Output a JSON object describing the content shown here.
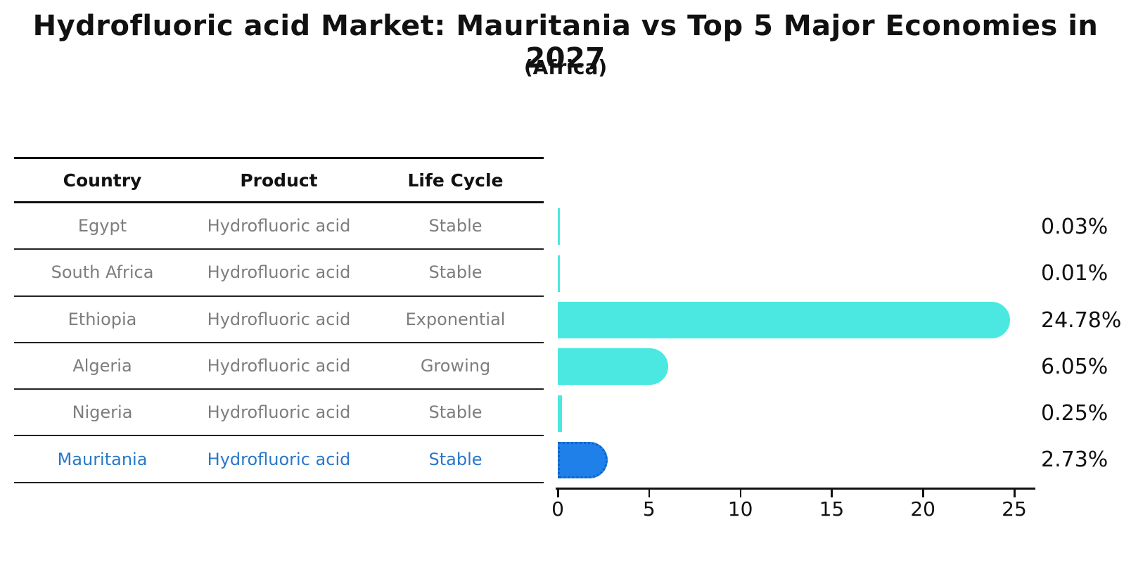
{
  "title": "Hydrofluoric acid Market: Mauritania vs Top 5 Major Economies in 2027",
  "subtitle": "(Africa)",
  "table": {
    "columns": {
      "country": "Country",
      "product": "Product",
      "life_cycle": "Life Cycle"
    },
    "rows": [
      {
        "country": "Egypt",
        "product": "Hydrofluoric acid",
        "life_cycle": "Stable",
        "highlight": false
      },
      {
        "country": "South Africa",
        "product": "Hydrofluoric acid",
        "life_cycle": "Stable",
        "highlight": false
      },
      {
        "country": "Ethiopia",
        "product": "Hydrofluoric acid",
        "life_cycle": "Exponential",
        "highlight": false
      },
      {
        "country": "Algeria",
        "product": "Hydrofluoric acid",
        "life_cycle": "Growing",
        "highlight": false
      },
      {
        "country": "Nigeria",
        "product": "Hydrofluoric acid",
        "life_cycle": "Stable",
        "highlight": false
      },
      {
        "country": "Mauritania",
        "product": "Hydrofluoric acid",
        "life_cycle": "Stable",
        "highlight": true
      }
    ]
  },
  "chart_data": {
    "type": "bar",
    "orientation": "horizontal",
    "categories": [
      "Egypt",
      "South Africa",
      "Ethiopia",
      "Algeria",
      "Nigeria",
      "Mauritania"
    ],
    "values": [
      0.03,
      0.01,
      24.78,
      6.05,
      0.25,
      2.73
    ],
    "value_labels": [
      "0.03%",
      "0.01%",
      "24.78%",
      "6.05%",
      "0.25%",
      "2.73%"
    ],
    "title": "Hydrofluoric acid Market: Mauritania vs Top 5 Major Economies in 2027",
    "subtitle": "(Africa)",
    "xlabel": "",
    "ylabel": "",
    "xlim": [
      0,
      26.2
    ],
    "x_ticks": [
      0,
      5,
      10,
      15,
      20,
      25
    ],
    "grid": false,
    "legend": false,
    "bar_color": "#4ae8e0",
    "highlight_bar_color": "#1e80e8",
    "highlight_bar_edge_style": "dotted",
    "highlight_index": 5,
    "row_text_color": "#7d7d7d",
    "highlight_text_color": "#2878c8"
  }
}
